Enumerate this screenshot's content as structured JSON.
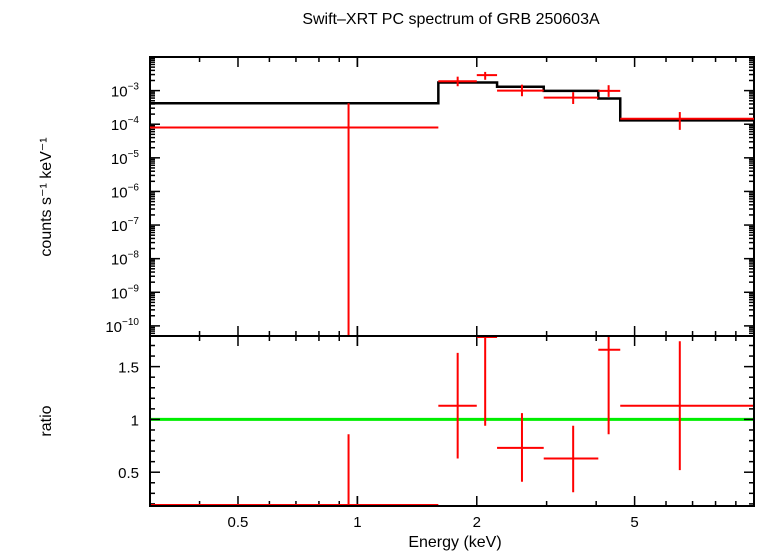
{
  "chart_data": [
    {
      "type": "line",
      "title": "Swift–XRT PC spectrum of GRB 250603A",
      "ylabel": "counts s⁻¹ keV⁻¹",
      "yscale": "log",
      "xscale": "log",
      "xlim": [
        0.3,
        10
      ],
      "ylim": [
        5e-11,
        0.01
      ],
      "y_ticks": [
        {
          "mant": "10",
          "exp": "−3",
          "v": 0.001
        },
        {
          "mant": "10",
          "exp": "−4",
          "v": 0.0001
        },
        {
          "mant": "10",
          "exp": "−5",
          "v": 1e-05
        },
        {
          "mant": "10",
          "exp": "−6",
          "v": 1e-06
        },
        {
          "mant": "10",
          "exp": "−7",
          "v": 1e-07
        },
        {
          "mant": "10",
          "exp": "−8",
          "v": 1e-08
        },
        {
          "mant": "10",
          "exp": "−9",
          "v": 1e-09
        },
        {
          "mant": "10",
          "exp": "−10",
          "v": 1e-10
        }
      ],
      "grid": false,
      "colors": {
        "data": "#ff0000",
        "model": "#000000"
      },
      "series": [
        {
          "kind": "data",
          "points": [
            {
              "x": 0.95,
              "xlo": 0.3,
              "xhi": 1.6,
              "y": 8e-05,
              "ylo": 5e-11,
              "yhi": 0.00042
            },
            {
              "x": 1.79,
              "xlo": 1.6,
              "xhi": 2.0,
              "y": 0.0019,
              "ylo": 0.00135,
              "yhi": 0.0026
            },
            {
              "x": 2.1,
              "xlo": 2.0,
              "xhi": 2.25,
              "y": 0.0029,
              "ylo": 0.0021,
              "yhi": 0.0036
            },
            {
              "x": 2.6,
              "xlo": 2.25,
              "xhi": 2.95,
              "y": 0.001,
              "ylo": 0.00068,
              "yhi": 0.0015
            },
            {
              "x": 3.5,
              "xlo": 2.95,
              "xhi": 4.05,
              "y": 0.00062,
              "ylo": 0.0004,
              "yhi": 0.0009
            },
            {
              "x": 4.3,
              "xlo": 4.05,
              "xhi": 4.6,
              "y": 0.00098,
              "ylo": 0.00065,
              "yhi": 0.00145
            },
            {
              "x": 6.5,
              "xlo": 4.6,
              "xhi": 10,
              "y": 0.000145,
              "ylo": 6.8e-05,
              "yhi": 0.00023
            }
          ]
        },
        {
          "kind": "model",
          "steps": [
            {
              "xlo": 0.3,
              "xhi": 1.6,
              "y": 0.00042
            },
            {
              "xlo": 1.6,
              "xhi": 2.25,
              "y": 0.00175
            },
            {
              "xlo": 2.25,
              "xhi": 2.95,
              "y": 0.0013
            },
            {
              "xlo": 2.95,
              "xhi": 4.05,
              "y": 0.00098
            },
            {
              "xlo": 4.05,
              "xhi": 4.6,
              "y": 0.00058
            },
            {
              "xlo": 4.6,
              "xhi": 10,
              "y": 0.00013
            }
          ]
        }
      ]
    },
    {
      "type": "line",
      "ylabel": "ratio",
      "xlabel": "Energy (keV)",
      "xscale": "log",
      "xlim": [
        0.3,
        10
      ],
      "ylim": [
        0.18,
        1.79
      ],
      "y_ticks": [
        "0.5",
        "1",
        "1.5"
      ],
      "x_ticks": [
        "0.5",
        "1",
        "2",
        "5"
      ],
      "grid": false,
      "reference_line": 1,
      "colors": {
        "data": "#ff0000",
        "reference": "#00ee00"
      },
      "points": [
        {
          "x": 0.95,
          "xlo": 0.3,
          "xhi": 1.6,
          "y": 0.19,
          "ylo": 0.18,
          "yhi": 0.86
        },
        {
          "x": 1.79,
          "xlo": 1.6,
          "xhi": 2.0,
          "y": 1.13,
          "ylo": 0.63,
          "yhi": 1.63
        },
        {
          "x": 2.1,
          "xlo": 2.0,
          "xhi": 2.25,
          "y": 1.78,
          "ylo": 0.94,
          "yhi": 1.79
        },
        {
          "x": 2.6,
          "xlo": 2.25,
          "xhi": 2.95,
          "y": 0.73,
          "ylo": 0.41,
          "yhi": 1.06
        },
        {
          "x": 3.5,
          "xlo": 2.95,
          "xhi": 4.05,
          "y": 0.63,
          "ylo": 0.31,
          "yhi": 0.94
        },
        {
          "x": 4.3,
          "xlo": 4.05,
          "xhi": 4.6,
          "y": 1.66,
          "ylo": 0.86,
          "yhi": 1.79
        },
        {
          "x": 6.5,
          "xlo": 4.6,
          "xhi": 10,
          "y": 1.13,
          "ylo": 0.52,
          "yhi": 1.74
        }
      ]
    }
  ]
}
